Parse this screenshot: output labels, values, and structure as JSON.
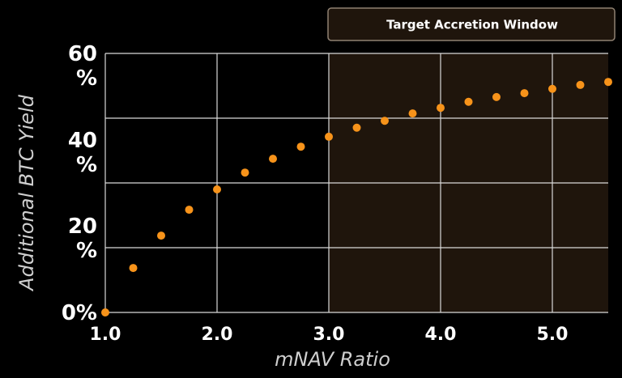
{
  "chart_data": {
    "type": "scatter",
    "x_label": "mNAV Ratio",
    "y_label": "Additional BTC Yield",
    "highlight": {
      "from": 3,
      "to": 5.5,
      "label": "Target Accretion Window"
    },
    "color": "#f7931a",
    "x": [
      1,
      1.25,
      1.5,
      1.75,
      2,
      2.25,
      2.5,
      2.75,
      3,
      3.25,
      3.5,
      3.75,
      4,
      4.25,
      4.5,
      4.75,
      5,
      5.25,
      5.5
    ],
    "values": [
      0,
      10.3,
      17.8,
      23.8,
      28.5,
      32.4,
      35.6,
      38.4,
      40.7,
      42.8,
      44.4,
      46.1,
      47.4,
      48.8,
      49.9,
      50.8,
      51.8,
      52.7,
      53.4
    ],
    "xlim": [
      1,
      5.5
    ],
    "ylim": [
      0,
      60
    ],
    "xticks": [
      {
        "value": 1,
        "label": "1.0"
      },
      {
        "value": 2,
        "label": "2.0"
      },
      {
        "value": 3,
        "label": "3.0"
      },
      {
        "value": 4,
        "label": "4.0"
      },
      {
        "value": 5,
        "label": "5.0"
      }
    ],
    "yticks": [
      {
        "value": 0,
        "label": "0%"
      },
      {
        "value": 20,
        "label": "20 %"
      },
      {
        "value": 40,
        "label": "40 %"
      },
      {
        "value": 60,
        "label": "60 %"
      }
    ],
    "ygrid": [
      0,
      15,
      30,
      45,
      60
    ],
    "grid": true
  }
}
